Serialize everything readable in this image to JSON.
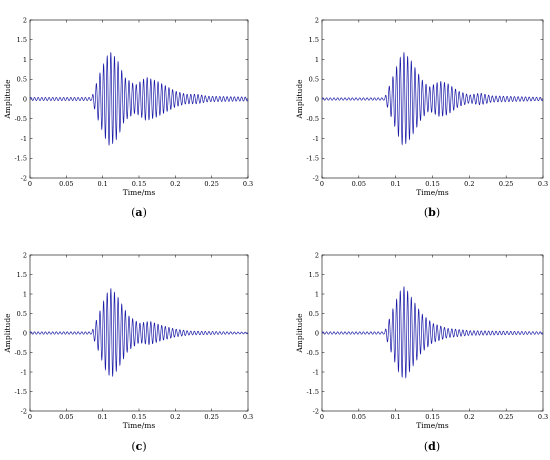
{
  "figure": {
    "panels": [
      {
        "caption_open": "(",
        "caption_letter": "a",
        "caption_close": ")"
      },
      {
        "caption_open": "(",
        "caption_letter": "b",
        "caption_close": ")"
      },
      {
        "caption_open": "(",
        "caption_letter": "c",
        "caption_close": ")"
      },
      {
        "caption_open": "(",
        "caption_letter": "d",
        "caption_close": ")"
      }
    ]
  },
  "chart_data": [
    {
      "type": "line",
      "xlabel": "Time/ms",
      "ylabel": "Amplitude",
      "xlim": [
        0,
        0.3
      ],
      "ylim": [
        -2,
        2
      ],
      "x_ticks": [
        "0",
        "0.05",
        "0.1",
        "0.15",
        "0.2",
        "0.25",
        "0.3"
      ],
      "y_ticks": [
        "-2",
        "-1.5",
        "-1",
        "-0.5",
        "0",
        "0.5",
        "1",
        "1.5",
        "2"
      ],
      "grid": false,
      "color": "#1a1aa8",
      "signal": {
        "onset": 0.09,
        "carrier_khz": 200,
        "envelope_points": [
          [
            0,
            0.04
          ],
          [
            0.085,
            0.04
          ],
          [
            0.095,
            0.6
          ],
          [
            0.105,
            1.05
          ],
          [
            0.11,
            1.2
          ],
          [
            0.12,
            1.0
          ],
          [
            0.13,
            0.55
          ],
          [
            0.145,
            0.35
          ],
          [
            0.16,
            0.55
          ],
          [
            0.175,
            0.45
          ],
          [
            0.19,
            0.3
          ],
          [
            0.2,
            0.2
          ],
          [
            0.215,
            0.12
          ],
          [
            0.23,
            0.12
          ],
          [
            0.245,
            0.07
          ],
          [
            0.3,
            0.05
          ]
        ]
      }
    },
    {
      "type": "line",
      "xlabel": "Time/ms",
      "ylabel": "Amplitude",
      "xlim": [
        0,
        0.3
      ],
      "ylim": [
        -2,
        2
      ],
      "x_ticks": [
        "0",
        "0.05",
        "0.1",
        "0.15",
        "0.2",
        "0.25",
        "0.3"
      ],
      "y_ticks": [
        "-2",
        "-1.5",
        "-1",
        "-0.5",
        "0",
        "0.5",
        "1",
        "1.5",
        "2"
      ],
      "grid": false,
      "color": "#1a1aa8",
      "signal": {
        "onset": 0.09,
        "carrier_khz": 200,
        "envelope_points": [
          [
            0,
            0.03
          ],
          [
            0.085,
            0.03
          ],
          [
            0.095,
            0.5
          ],
          [
            0.105,
            1.0
          ],
          [
            0.11,
            1.2
          ],
          [
            0.12,
            1.0
          ],
          [
            0.135,
            0.5
          ],
          [
            0.145,
            0.3
          ],
          [
            0.16,
            0.45
          ],
          [
            0.17,
            0.4
          ],
          [
            0.185,
            0.2
          ],
          [
            0.2,
            0.1
          ],
          [
            0.215,
            0.15
          ],
          [
            0.23,
            0.08
          ],
          [
            0.3,
            0.04
          ]
        ]
      }
    },
    {
      "type": "line",
      "xlabel": "Time/ms",
      "ylabel": "Amplitude",
      "xlim": [
        0,
        0.3
      ],
      "ylim": [
        -2,
        2
      ],
      "x_ticks": [
        "0",
        "0.05",
        "0.1",
        "0.15",
        "0.2",
        "0.25",
        "0.3"
      ],
      "y_ticks": [
        "-2",
        "-1.5",
        "-1",
        "-0.5",
        "0",
        "0.5",
        "1",
        "1.5",
        "2"
      ],
      "grid": false,
      "color": "#1a1aa8",
      "signal": {
        "onset": 0.09,
        "carrier_khz": 200,
        "envelope_points": [
          [
            0,
            0.03
          ],
          [
            0.085,
            0.03
          ],
          [
            0.095,
            0.5
          ],
          [
            0.105,
            1.0
          ],
          [
            0.112,
            1.15
          ],
          [
            0.12,
            0.95
          ],
          [
            0.135,
            0.45
          ],
          [
            0.15,
            0.25
          ],
          [
            0.165,
            0.3
          ],
          [
            0.18,
            0.2
          ],
          [
            0.2,
            0.1
          ],
          [
            0.22,
            0.05
          ],
          [
            0.3,
            0.02
          ]
        ]
      }
    },
    {
      "type": "line",
      "xlabel": "Time/ms",
      "ylabel": "Amplitude",
      "xlim": [
        0,
        0.3
      ],
      "ylim": [
        -2,
        2
      ],
      "x_ticks": [
        "0",
        "0.05",
        "0.1",
        "0.15",
        "0.2",
        "0.25",
        "0.3"
      ],
      "y_ticks": [
        "-2",
        "-1.5",
        "-1",
        "-0.5",
        "0",
        "0.5",
        "1",
        "1.5",
        "2"
      ],
      "grid": false,
      "color": "#1a1aa8",
      "signal": {
        "onset": 0.09,
        "carrier_khz": 200,
        "envelope_points": [
          [
            0,
            0.03
          ],
          [
            0.085,
            0.03
          ],
          [
            0.095,
            0.55
          ],
          [
            0.105,
            1.05
          ],
          [
            0.112,
            1.2
          ],
          [
            0.12,
            0.95
          ],
          [
            0.135,
            0.5
          ],
          [
            0.15,
            0.25
          ],
          [
            0.17,
            0.12
          ],
          [
            0.2,
            0.06
          ],
          [
            0.3,
            0.03
          ]
        ]
      }
    }
  ]
}
